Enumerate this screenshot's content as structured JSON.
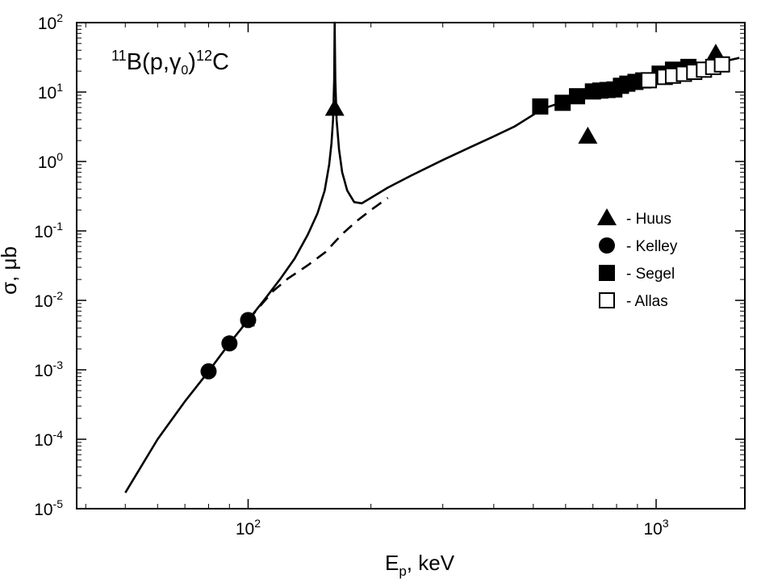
{
  "chart_data": {
    "type": "scatter",
    "title": "",
    "annotation": {
      "reaction_parts": [
        "11",
        "B(p,",
        "γ",
        "0",
        ")",
        "12",
        "C"
      ]
    },
    "xlabel": {
      "main": "E",
      "sub": "p",
      "rest": ", keV"
    },
    "ylabel": "σ, μb",
    "x_scale": "log",
    "y_scale": "log",
    "xlim": [
      38,
      1650
    ],
    "ylim": [
      1e-05,
      100
    ],
    "x_ticks": [
      {
        "value": 100,
        "base": "10",
        "exp": "2"
      },
      {
        "value": 1000,
        "base": "10",
        "exp": "3"
      }
    ],
    "y_ticks": [
      {
        "value": 1e-05,
        "base": "10",
        "exp": "-5"
      },
      {
        "value": 0.0001,
        "base": "10",
        "exp": "-4"
      },
      {
        "value": 0.001,
        "base": "10",
        "exp": "-3"
      },
      {
        "value": 0.01,
        "base": "10",
        "exp": "-2"
      },
      {
        "value": 0.1,
        "base": "10",
        "exp": "-1"
      },
      {
        "value": 1,
        "base": "10",
        "exp": "0"
      },
      {
        "value": 10,
        "base": "10",
        "exp": "1"
      },
      {
        "value": 100,
        "base": "10",
        "exp": "2"
      }
    ],
    "grid": false,
    "legend_position": "right",
    "series": [
      {
        "name": "Huus",
        "marker": "filled-triangle",
        "points": [
          [
            163,
            5.8
          ],
          [
            680,
            2.3
          ],
          [
            1400,
            36
          ]
        ]
      },
      {
        "name": "Kelley",
        "marker": "filled-circle",
        "error_bars": true,
        "points": [
          [
            80,
            0.00095,
            0.00012
          ],
          [
            90,
            0.0024,
            0.00035
          ],
          [
            100,
            0.0052,
            0.0009
          ]
        ]
      },
      {
        "name": "Segel",
        "marker": "filled-square",
        "points": [
          [
            520,
            6.2
          ],
          [
            590,
            7.0
          ],
          [
            640,
            8.7
          ],
          [
            700,
            10.2
          ],
          [
            730,
            10.5
          ],
          [
            760,
            10.7
          ],
          [
            790,
            10.9
          ],
          [
            820,
            12.3
          ],
          [
            850,
            13.2
          ],
          [
            890,
            14.0
          ],
          [
            930,
            14.7
          ],
          [
            1020,
            18.4
          ],
          [
            1100,
            21.0
          ],
          [
            1200,
            23.0
          ]
        ]
      },
      {
        "name": "Allas",
        "marker": "open-square",
        "points": [
          [
            960,
            14.8
          ],
          [
            1050,
            16.5
          ],
          [
            1100,
            17.2
          ],
          [
            1170,
            18.3
          ],
          [
            1240,
            19.5
          ],
          [
            1310,
            21.0
          ],
          [
            1380,
            23.0
          ],
          [
            1450,
            25.0
          ]
        ]
      }
    ],
    "curves": [
      {
        "style": "solid",
        "points": [
          [
            50,
            1.7e-05
          ],
          [
            60,
            0.0001
          ],
          [
            70,
            0.00035
          ],
          [
            80,
            0.00095
          ],
          [
            90,
            0.0024
          ],
          [
            100,
            0.0052
          ],
          [
            110,
            0.0105
          ],
          [
            120,
            0.0205
          ],
          [
            130,
            0.04
          ],
          [
            140,
            0.088
          ],
          [
            148,
            0.18
          ],
          [
            154,
            0.38
          ],
          [
            158,
            0.9
          ],
          [
            160,
            1.8
          ],
          [
            161.5,
            4.0
          ],
          [
            162.5,
            15
          ],
          [
            163,
            100
          ],
          [
            163.6,
            15
          ],
          [
            164.8,
            4.0
          ],
          [
            167,
            1.5
          ],
          [
            170,
            0.7
          ],
          [
            175,
            0.38
          ],
          [
            182,
            0.26
          ],
          [
            190,
            0.25
          ],
          [
            200,
            0.3
          ],
          [
            220,
            0.42
          ],
          [
            250,
            0.62
          ],
          [
            300,
            1.05
          ],
          [
            350,
            1.6
          ],
          [
            400,
            2.3
          ],
          [
            450,
            3.2
          ],
          [
            500,
            4.7
          ],
          [
            520,
            5.6
          ],
          [
            600,
            7.4
          ],
          [
            700,
            9.3
          ],
          [
            800,
            11.6
          ],
          [
            900,
            13.4
          ],
          [
            1000,
            15.7
          ],
          [
            1200,
            20.6
          ],
          [
            1400,
            26.0
          ],
          [
            1600,
            31.0
          ]
        ]
      },
      {
        "style": "dashed",
        "points": [
          [
            100,
            0.0052
          ],
          [
            115,
            0.0135
          ],
          [
            125,
            0.0205
          ],
          [
            140,
            0.032
          ],
          [
            155,
            0.05
          ],
          [
            170,
            0.09
          ],
          [
            185,
            0.14
          ],
          [
            200,
            0.2
          ],
          [
            220,
            0.3
          ]
        ]
      }
    ]
  }
}
